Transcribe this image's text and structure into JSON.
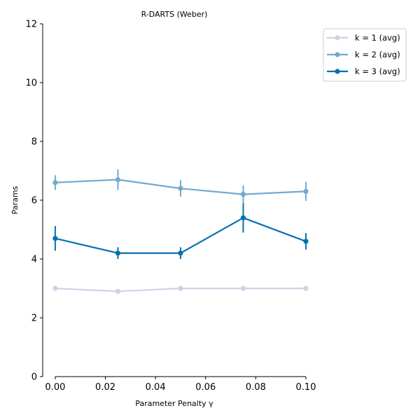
{
  "chart_data": {
    "type": "line",
    "title": "R-DARTS (Weber)",
    "xlabel": "Parameter Penalty γ",
    "ylabel": "Params",
    "xlim": [
      -0.005,
      0.1
    ],
    "ylim": [
      0,
      12
    ],
    "xticks": [
      0.0,
      0.02,
      0.04,
      0.06,
      0.08,
      0.1
    ],
    "xtick_labels": [
      "0.00",
      "0.02",
      "0.04",
      "0.06",
      "0.08",
      "0.10"
    ],
    "yticks": [
      0,
      2,
      4,
      6,
      8,
      10,
      12
    ],
    "ytick_labels": [
      "0",
      "2",
      "4",
      "6",
      "8",
      "10",
      "12"
    ],
    "grid": false,
    "legend_position": "outside-top-right",
    "x": [
      0.0,
      0.025,
      0.05,
      0.075,
      0.1
    ],
    "series": [
      {
        "name": "k = 1 (avg)",
        "color": "#d0d1e6",
        "values": [
          3.0,
          2.9,
          3.0,
          3.0,
          3.0
        ],
        "err": [
          0.0,
          0.0,
          0.0,
          0.0,
          0.0
        ]
      },
      {
        "name": "k = 2 (avg)",
        "color": "#74a9cf",
        "values": [
          6.6,
          6.7,
          6.4,
          6.2,
          6.3
        ],
        "err": [
          0.25,
          0.35,
          0.28,
          0.3,
          0.32
        ]
      },
      {
        "name": "k = 3 (avg)",
        "color": "#0570b0",
        "values": [
          4.7,
          4.2,
          4.2,
          5.4,
          4.6
        ],
        "err": [
          0.42,
          0.2,
          0.2,
          0.5,
          0.28
        ]
      }
    ]
  }
}
